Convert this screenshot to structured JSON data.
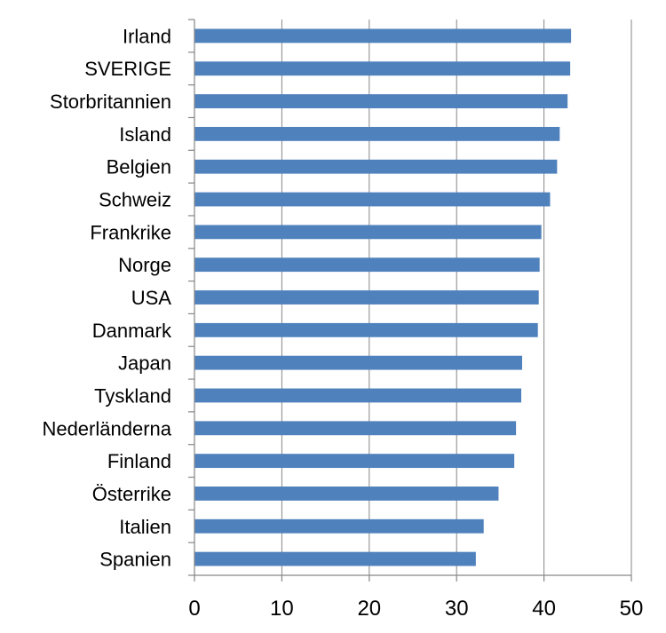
{
  "chart_data": {
    "type": "bar",
    "orientation": "horizontal",
    "title": "",
    "xlabel": "",
    "ylabel": "",
    "categories": [
      "Irland",
      "SVERIGE",
      "Storbritannien",
      "Island",
      "Belgien",
      "Schweiz",
      "Frankrike",
      "Norge",
      "USA",
      "Danmark",
      "Japan",
      "Tyskland",
      "Nederländerna",
      "Finland",
      "Österrike",
      "Italien",
      "Spanien"
    ],
    "values": [
      43.1,
      43.0,
      42.7,
      41.8,
      41.5,
      40.7,
      39.7,
      39.5,
      39.4,
      39.3,
      37.5,
      37.4,
      36.8,
      36.6,
      34.8,
      33.1,
      32.2
    ],
    "xlim": [
      0,
      50
    ],
    "xticks": [
      "0",
      "10",
      "20",
      "30",
      "40",
      "50"
    ],
    "grid": true,
    "legend": "none",
    "bar_color": "#4F81BD",
    "grid_color": "#868686"
  }
}
